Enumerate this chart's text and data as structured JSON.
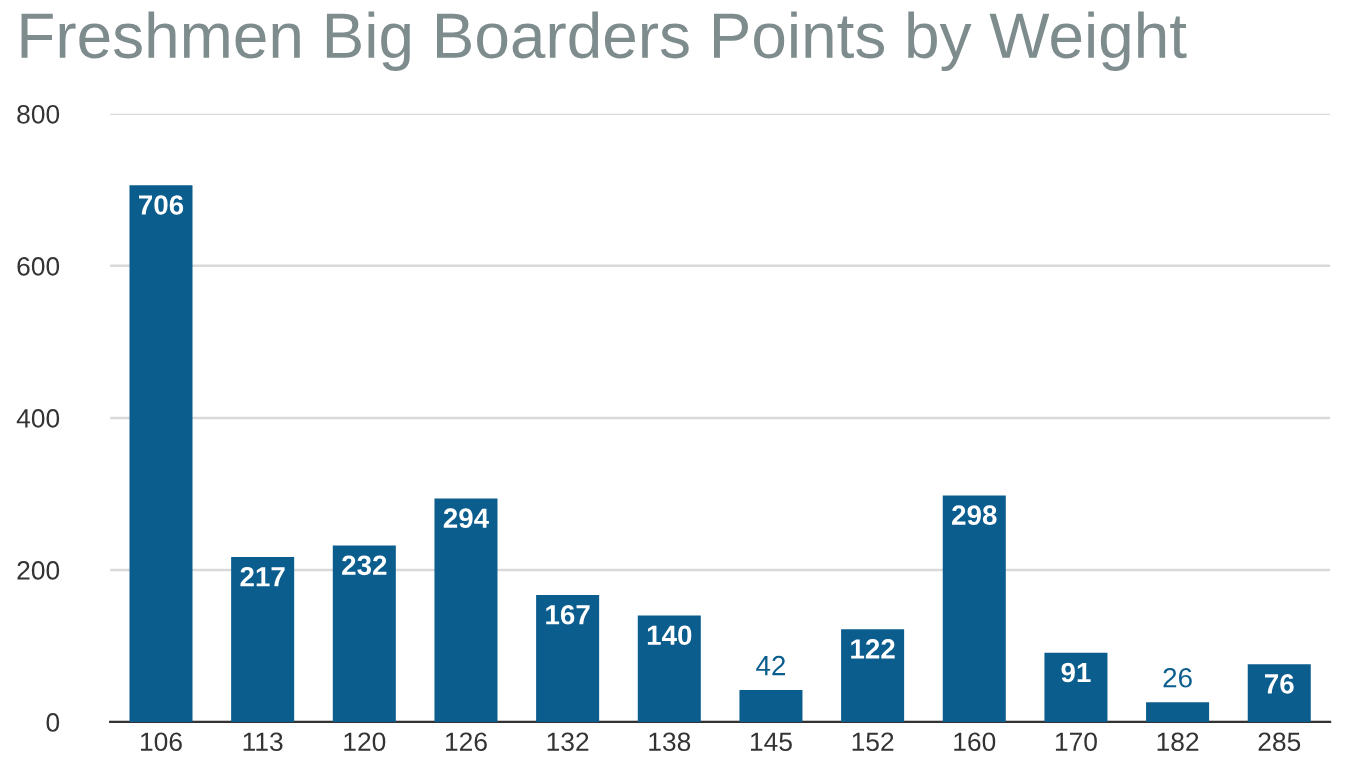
{
  "chart_data": {
    "type": "bar",
    "title": "Freshmen Big Boarders Points by Weight",
    "categories": [
      "106",
      "113",
      "120",
      "126",
      "132",
      "138",
      "145",
      "152",
      "160",
      "170",
      "182",
      "285"
    ],
    "values": [
      706,
      217,
      232,
      294,
      167,
      140,
      42,
      122,
      298,
      91,
      26,
      76
    ],
    "color": "#0b5d8e",
    "ylim": [
      0,
      800
    ],
    "yticks": [
      0,
      200,
      400,
      600,
      800
    ],
    "grid": "y",
    "data_labels": true
  }
}
